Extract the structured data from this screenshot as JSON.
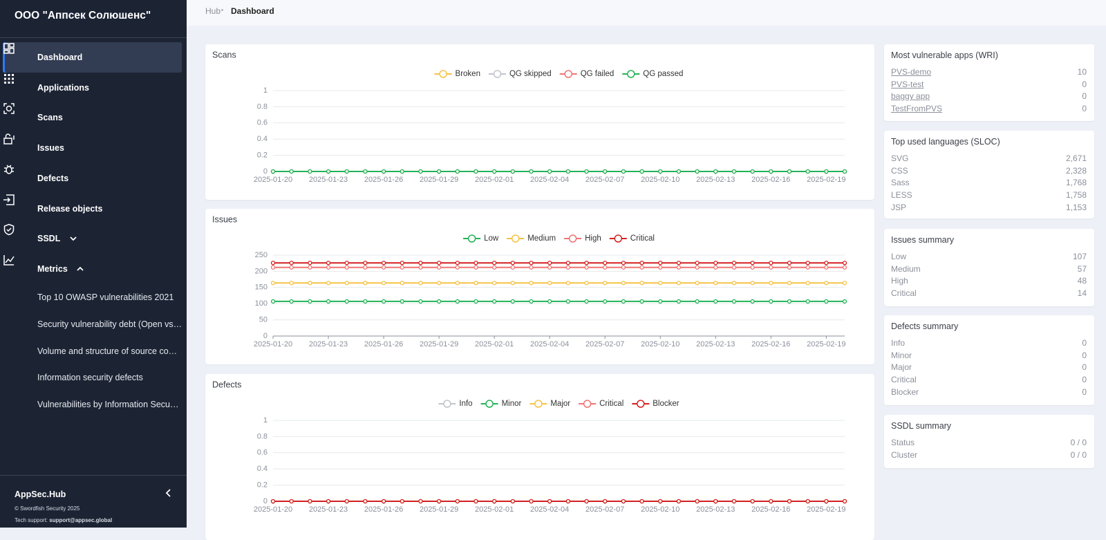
{
  "sidebar": {
    "org": "ООО \"Аппсек Солюшенс\"",
    "nav": [
      "Dashboard",
      "Applications",
      "Scans",
      "Issues",
      "Defects",
      "Release objects",
      "SSDL",
      "Metrics"
    ],
    "metrics_items": [
      "Top 10 OWASP vulnerabilities 2021",
      "Security vulnerability debt (Open vs…",
      "Volume and structure of source co…",
      "Information security defects",
      "Vulnerabilities by Information Secu…"
    ],
    "footer": {
      "brand": "AppSec.Hub",
      "copyright": "© Swordfish Security 2025",
      "support_label": "Tech support:",
      "support_email": "support@appsec.global"
    }
  },
  "breadcrumb": [
    "Hub",
    "Dashboard"
  ],
  "chart_data": [
    {
      "type": "line",
      "title": "Scans",
      "categories": [
        "2025-01-20",
        null,
        null,
        "2025-01-23",
        null,
        null,
        "2025-01-26",
        null,
        null,
        "2025-01-29",
        null,
        null,
        "2025-02-01",
        null,
        null,
        "2025-02-04",
        null,
        null,
        "2025-02-07",
        null,
        null,
        "2025-02-10",
        null,
        null,
        "2025-02-13",
        null,
        null,
        "2025-02-16",
        null,
        null,
        "2025-02-19",
        null
      ],
      "ylim": [
        0,
        1
      ],
      "yticks": [
        0,
        0.2,
        0.4,
        0.6,
        0.8,
        1
      ],
      "grid": true,
      "stacked": false,
      "series": [
        {
          "name": "Broken",
          "color": "#f6c244",
          "values": [
            0,
            0,
            0,
            0,
            0,
            0,
            0,
            0,
            0,
            0,
            0,
            0,
            0,
            0,
            0,
            0,
            0,
            0,
            0,
            0,
            0,
            0,
            0,
            0,
            0,
            0,
            0,
            0,
            0,
            0,
            0,
            0
          ]
        },
        {
          "name": "QG skipped",
          "color": "#c0c4cc",
          "values": [
            0,
            0,
            0,
            0,
            0,
            0,
            0,
            0,
            0,
            0,
            0,
            0,
            0,
            0,
            0,
            0,
            0,
            0,
            0,
            0,
            0,
            0,
            0,
            0,
            0,
            0,
            0,
            0,
            0,
            0,
            0,
            0
          ]
        },
        {
          "name": "QG failed",
          "color": "#f07474",
          "values": [
            0,
            0,
            0,
            0,
            0,
            0,
            0,
            0,
            0,
            0,
            0,
            0,
            0,
            0,
            0,
            0,
            0,
            0,
            0,
            0,
            0,
            0,
            0,
            0,
            0,
            0,
            0,
            0,
            0,
            0,
            0,
            0
          ]
        },
        {
          "name": "QG passed",
          "color": "#22b356",
          "values": [
            0,
            0,
            0,
            0,
            0,
            0,
            0,
            0,
            0,
            0,
            0,
            0,
            0,
            0,
            0,
            0,
            0,
            0,
            0,
            0,
            0,
            0,
            0,
            0,
            0,
            0,
            0,
            0,
            0,
            0,
            0,
            0
          ]
        }
      ]
    },
    {
      "type": "line",
      "title": "Issues",
      "categories": [
        "2025-01-20",
        null,
        null,
        "2025-01-23",
        null,
        null,
        "2025-01-26",
        null,
        null,
        "2025-01-29",
        null,
        null,
        "2025-02-01",
        null,
        null,
        "2025-02-04",
        null,
        null,
        "2025-02-07",
        null,
        null,
        "2025-02-10",
        null,
        null,
        "2025-02-13",
        null,
        null,
        "2025-02-16",
        null,
        null,
        "2025-02-19",
        null
      ],
      "ylim": [
        0,
        250
      ],
      "yticks": [
        0,
        50,
        100,
        150,
        200,
        250
      ],
      "grid": true,
      "stacked": true,
      "series": [
        {
          "name": "Low",
          "color": "#22b356",
          "values": [
            107,
            107,
            107,
            107,
            107,
            107,
            107,
            107,
            107,
            107,
            107,
            107,
            107,
            107,
            107,
            107,
            107,
            107,
            107,
            107,
            107,
            107,
            107,
            107,
            107,
            107,
            107,
            107,
            107,
            107,
            107,
            107
          ]
        },
        {
          "name": "Medium",
          "color": "#f6c244",
          "values": [
            57,
            57,
            57,
            57,
            57,
            57,
            57,
            57,
            57,
            57,
            57,
            57,
            57,
            57,
            57,
            57,
            57,
            57,
            57,
            57,
            57,
            57,
            57,
            57,
            57,
            57,
            57,
            57,
            57,
            57,
            57,
            57
          ]
        },
        {
          "name": "High",
          "color": "#f07474",
          "values": [
            48,
            48,
            48,
            48,
            48,
            48,
            48,
            48,
            48,
            48,
            48,
            48,
            48,
            48,
            48,
            48,
            48,
            48,
            48,
            48,
            48,
            48,
            48,
            48,
            48,
            48,
            48,
            48,
            48,
            48,
            48,
            48
          ]
        },
        {
          "name": "Critical",
          "color": "#d42020",
          "values": [
            14,
            14,
            14,
            14,
            14,
            14,
            14,
            14,
            14,
            14,
            14,
            14,
            14,
            14,
            14,
            14,
            14,
            14,
            14,
            14,
            14,
            14,
            14,
            14,
            14,
            14,
            14,
            14,
            14,
            14,
            14,
            14
          ]
        }
      ]
    },
    {
      "type": "line",
      "title": "Defects",
      "categories": [
        "2025-01-20",
        null,
        null,
        "2025-01-23",
        null,
        null,
        "2025-01-26",
        null,
        null,
        "2025-01-29",
        null,
        null,
        "2025-02-01",
        null,
        null,
        "2025-02-04",
        null,
        null,
        "2025-02-07",
        null,
        null,
        "2025-02-10",
        null,
        null,
        "2025-02-13",
        null,
        null,
        "2025-02-16",
        null,
        null,
        "2025-02-19",
        null
      ],
      "ylim": [
        0,
        1
      ],
      "yticks": [
        0,
        0.2,
        0.4,
        0.6,
        0.8,
        1
      ],
      "grid": true,
      "stacked": false,
      "series": [
        {
          "name": "Info",
          "color": "#c0c4cc",
          "values": [
            0,
            0,
            0,
            0,
            0,
            0,
            0,
            0,
            0,
            0,
            0,
            0,
            0,
            0,
            0,
            0,
            0,
            0,
            0,
            0,
            0,
            0,
            0,
            0,
            0,
            0,
            0,
            0,
            0,
            0,
            0,
            0
          ]
        },
        {
          "name": "Minor",
          "color": "#22b356",
          "values": [
            0,
            0,
            0,
            0,
            0,
            0,
            0,
            0,
            0,
            0,
            0,
            0,
            0,
            0,
            0,
            0,
            0,
            0,
            0,
            0,
            0,
            0,
            0,
            0,
            0,
            0,
            0,
            0,
            0,
            0,
            0,
            0
          ]
        },
        {
          "name": "Major",
          "color": "#f6c244",
          "values": [
            0,
            0,
            0,
            0,
            0,
            0,
            0,
            0,
            0,
            0,
            0,
            0,
            0,
            0,
            0,
            0,
            0,
            0,
            0,
            0,
            0,
            0,
            0,
            0,
            0,
            0,
            0,
            0,
            0,
            0,
            0,
            0
          ]
        },
        {
          "name": "Critical",
          "color": "#f07474",
          "values": [
            0,
            0,
            0,
            0,
            0,
            0,
            0,
            0,
            0,
            0,
            0,
            0,
            0,
            0,
            0,
            0,
            0,
            0,
            0,
            0,
            0,
            0,
            0,
            0,
            0,
            0,
            0,
            0,
            0,
            0,
            0,
            0
          ]
        },
        {
          "name": "Blocker",
          "color": "#d42020",
          "values": [
            0,
            0,
            0,
            0,
            0,
            0,
            0,
            0,
            0,
            0,
            0,
            0,
            0,
            0,
            0,
            0,
            0,
            0,
            0,
            0,
            0,
            0,
            0,
            0,
            0,
            0,
            0,
            0,
            0,
            0,
            0,
            0
          ]
        }
      ]
    }
  ],
  "panels": [
    {
      "title": "Most vulnerable apps (WRI)",
      "links": true,
      "rows": [
        {
          "label": "PVS-demo",
          "value": 10
        },
        {
          "label": "PVS-test",
          "value": 0
        },
        {
          "label": "baggy app",
          "value": 0
        },
        {
          "label": "TestFromPVS",
          "value": 0
        }
      ]
    },
    {
      "title": "Top used languages (SLOC)",
      "links": false,
      "rows": [
        {
          "label": "SVG",
          "value": "2,671"
        },
        {
          "label": "CSS",
          "value": "2,328"
        },
        {
          "label": "Sass",
          "value": "1,768"
        },
        {
          "label": "LESS",
          "value": "1,758"
        },
        {
          "label": "JSP",
          "value": "1,153"
        }
      ]
    },
    {
      "title": "Issues summary",
      "links": false,
      "rows": [
        {
          "label": "Low",
          "value": 107
        },
        {
          "label": "Medium",
          "value": 57
        },
        {
          "label": "High",
          "value": 48
        },
        {
          "label": "Critical",
          "value": 14
        }
      ]
    },
    {
      "title": "Defects summary",
      "links": false,
      "rows": [
        {
          "label": "Info",
          "value": 0
        },
        {
          "label": "Minor",
          "value": 0
        },
        {
          "label": "Major",
          "value": 0
        },
        {
          "label": "Critical",
          "value": 0
        },
        {
          "label": "Blocker",
          "value": 0
        }
      ]
    },
    {
      "title": "SSDL summary",
      "links": false,
      "rows": [
        {
          "label": "Status",
          "value": "0 / 0"
        },
        {
          "label": "Cluster",
          "value": "0 / 0"
        }
      ]
    }
  ]
}
